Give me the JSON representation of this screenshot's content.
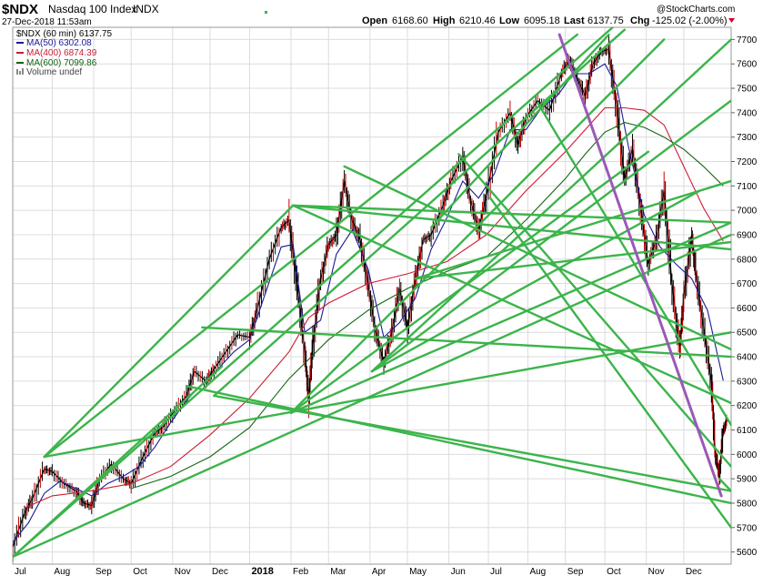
{
  "header": {
    "symbol": "$NDX",
    "name": "Nasdaq 100 Index",
    "exchange": "INDX",
    "date": "27-Dec-2018 11:53am",
    "watermark": "@StockCharts.com",
    "open_label": "Open",
    "open": "6168.60",
    "high_label": "High",
    "high": "6210.46",
    "low_label": "Low",
    "low": "6095.18",
    "last_label": "Last",
    "last": "6137.75",
    "chg_label": "Chg",
    "chg": "-125.02 (-2.00%)"
  },
  "legend": {
    "price": "$NDX (60 min) 6137.75",
    "ma50": "MA(50) 6302.08",
    "ma400": "MA(400) 6874.39",
    "ma600": "MA(600) 7099.86",
    "volume": "Volume undef"
  },
  "colors": {
    "price": "#000000",
    "down_bar": "#cc0000",
    "ma50": "#1a1a99",
    "ma400": "#cc1a33",
    "ma600": "#116611",
    "trendline": "#3cb44b",
    "purple_line": "#9b59b6",
    "down_arrow": "#cc0033"
  },
  "chart_data": {
    "type": "line",
    "title": "$NDX Nasdaq 100 Index INDX (60 min)",
    "xlabel": "",
    "ylabel": "",
    "ylim": [
      5550,
      7750
    ],
    "xlim": [
      0,
      18.2
    ],
    "y_ticks": [
      5600,
      5700,
      5800,
      5900,
      6000,
      6100,
      6200,
      6300,
      6400,
      6500,
      6600,
      6700,
      6800,
      6900,
      7000,
      7100,
      7200,
      7300,
      7400,
      7500,
      7600,
      7700
    ],
    "x_ticks": [
      {
        "t": 0.0,
        "label": "Jul"
      },
      {
        "t": 1.0,
        "label": "Aug"
      },
      {
        "t": 2.05,
        "label": "Sep"
      },
      {
        "t": 3.0,
        "label": "Oct"
      },
      {
        "t": 4.05,
        "label": "Nov"
      },
      {
        "t": 5.0,
        "label": "Dec"
      },
      {
        "t": 6.0,
        "label": "2018",
        "bold": true
      },
      {
        "t": 7.05,
        "label": "Feb"
      },
      {
        "t": 8.0,
        "label": "Mar"
      },
      {
        "t": 9.05,
        "label": "Apr"
      },
      {
        "t": 10.0,
        "label": "May"
      },
      {
        "t": 11.05,
        "label": "Jun"
      },
      {
        "t": 12.05,
        "label": "Jul"
      },
      {
        "t": 13.05,
        "label": "Aug"
      },
      {
        "t": 14.0,
        "label": "Sep"
      },
      {
        "t": 15.0,
        "label": "Oct"
      },
      {
        "t": 16.05,
        "label": "Nov"
      },
      {
        "t": 17.0,
        "label": "Dec"
      }
    ],
    "series": [
      {
        "name": "$NDX (60 min)",
        "color": "#000000",
        "points": [
          [
            0.0,
            5620
          ],
          [
            0.3,
            5760
          ],
          [
            0.5,
            5820
          ],
          [
            0.8,
            5940
          ],
          [
            1.0,
            5930
          ],
          [
            1.3,
            5880
          ],
          [
            1.6,
            5850
          ],
          [
            1.8,
            5800
          ],
          [
            2.0,
            5790
          ],
          [
            2.2,
            5900
          ],
          [
            2.5,
            5960
          ],
          [
            2.8,
            5900
          ],
          [
            3.0,
            5880
          ],
          [
            3.3,
            5990
          ],
          [
            3.6,
            6090
          ],
          [
            3.8,
            6110
          ],
          [
            4.1,
            6180
          ],
          [
            4.4,
            6240
          ],
          [
            4.6,
            6340
          ],
          [
            4.9,
            6300
          ],
          [
            5.1,
            6350
          ],
          [
            5.4,
            6420
          ],
          [
            5.7,
            6490
          ],
          [
            6.0,
            6480
          ],
          [
            6.2,
            6600
          ],
          [
            6.5,
            6800
          ],
          [
            6.8,
            6930
          ],
          [
            7.0,
            6960
          ],
          [
            7.2,
            6700
          ],
          [
            7.4,
            6420
          ],
          [
            7.5,
            6230
          ],
          [
            7.6,
            6450
          ],
          [
            7.8,
            6720
          ],
          [
            8.0,
            6860
          ],
          [
            8.2,
            6900
          ],
          [
            8.4,
            7120
          ],
          [
            8.6,
            6960
          ],
          [
            8.8,
            6880
          ],
          [
            9.0,
            6700
          ],
          [
            9.2,
            6500
          ],
          [
            9.4,
            6380
          ],
          [
            9.6,
            6500
          ],
          [
            9.8,
            6680
          ],
          [
            10.0,
            6520
          ],
          [
            10.2,
            6720
          ],
          [
            10.4,
            6880
          ],
          [
            10.6,
            6900
          ],
          [
            10.9,
            7020
          ],
          [
            11.1,
            7120
          ],
          [
            11.4,
            7220
          ],
          [
            11.6,
            7040
          ],
          [
            11.8,
            6920
          ],
          [
            12.0,
            7060
          ],
          [
            12.3,
            7320
          ],
          [
            12.6,
            7400
          ],
          [
            12.8,
            7270
          ],
          [
            13.0,
            7380
          ],
          [
            13.3,
            7450
          ],
          [
            13.6,
            7410
          ],
          [
            13.9,
            7560
          ],
          [
            14.1,
            7620
          ],
          [
            14.3,
            7540
          ],
          [
            14.5,
            7470
          ],
          [
            14.7,
            7600
          ],
          [
            14.9,
            7650
          ],
          [
            15.1,
            7660
          ],
          [
            15.3,
            7430
          ],
          [
            15.5,
            7130
          ],
          [
            15.7,
            7250
          ],
          [
            15.9,
            7020
          ],
          [
            16.1,
            6780
          ],
          [
            16.3,
            6880
          ],
          [
            16.5,
            7080
          ],
          [
            16.7,
            6700
          ],
          [
            16.9,
            6440
          ],
          [
            17.0,
            6650
          ],
          [
            17.2,
            6900
          ],
          [
            17.3,
            6750
          ],
          [
            17.5,
            6520
          ],
          [
            17.7,
            6300
          ],
          [
            17.8,
            6000
          ],
          [
            17.9,
            5920
          ],
          [
            18.0,
            6100
          ],
          [
            18.1,
            6140
          ]
        ]
      },
      {
        "name": "MA(50)",
        "color": "#1a1a99",
        "points": [
          [
            0.0,
            5640
          ],
          [
            0.4,
            5720
          ],
          [
            0.8,
            5840
          ],
          [
            1.2,
            5890
          ],
          [
            1.6,
            5860
          ],
          [
            2.0,
            5830
          ],
          [
            2.4,
            5880
          ],
          [
            2.8,
            5910
          ],
          [
            3.2,
            5950
          ],
          [
            3.6,
            6030
          ],
          [
            4.0,
            6130
          ],
          [
            4.4,
            6220
          ],
          [
            4.8,
            6290
          ],
          [
            5.2,
            6350
          ],
          [
            5.6,
            6420
          ],
          [
            6.0,
            6470
          ],
          [
            6.4,
            6660
          ],
          [
            6.8,
            6850
          ],
          [
            7.1,
            6860
          ],
          [
            7.4,
            6500
          ],
          [
            7.8,
            6550
          ],
          [
            8.2,
            6820
          ],
          [
            8.6,
            6920
          ],
          [
            9.0,
            6760
          ],
          [
            9.4,
            6480
          ],
          [
            9.8,
            6540
          ],
          [
            10.2,
            6640
          ],
          [
            10.6,
            6840
          ],
          [
            11.0,
            6970
          ],
          [
            11.4,
            7120
          ],
          [
            11.8,
            7050
          ],
          [
            12.2,
            7150
          ],
          [
            12.6,
            7330
          ],
          [
            13.0,
            7330
          ],
          [
            13.4,
            7420
          ],
          [
            13.8,
            7470
          ],
          [
            14.2,
            7560
          ],
          [
            14.6,
            7560
          ],
          [
            15.0,
            7600
          ],
          [
            15.3,
            7510
          ],
          [
            15.6,
            7260
          ],
          [
            16.0,
            6980
          ],
          [
            16.4,
            6850
          ],
          [
            16.8,
            6780
          ],
          [
            17.2,
            6720
          ],
          [
            17.6,
            6590
          ],
          [
            18.0,
            6302
          ]
        ]
      },
      {
        "name": "MA(400)",
        "color": "#cc1a33",
        "points": [
          [
            0.3,
            5780
          ],
          [
            1.0,
            5830
          ],
          [
            2.0,
            5850
          ],
          [
            3.0,
            5880
          ],
          [
            4.0,
            5950
          ],
          [
            5.0,
            6080
          ],
          [
            6.0,
            6230
          ],
          [
            7.0,
            6420
          ],
          [
            7.5,
            6560
          ],
          [
            8.0,
            6620
          ],
          [
            9.0,
            6700
          ],
          [
            10.0,
            6740
          ],
          [
            11.0,
            6790
          ],
          [
            12.0,
            6900
          ],
          [
            13.0,
            7080
          ],
          [
            14.0,
            7240
          ],
          [
            14.5,
            7330
          ],
          [
            15.0,
            7420
          ],
          [
            15.5,
            7420
          ],
          [
            16.0,
            7410
          ],
          [
            16.5,
            7350
          ],
          [
            17.0,
            7180
          ],
          [
            17.5,
            7010
          ],
          [
            18.0,
            6874
          ]
        ]
      },
      {
        "name": "MA(600)",
        "color": "#116611",
        "points": [
          [
            3.0,
            5860
          ],
          [
            4.0,
            5910
          ],
          [
            5.0,
            5990
          ],
          [
            6.0,
            6110
          ],
          [
            7.0,
            6310
          ],
          [
            8.0,
            6470
          ],
          [
            9.0,
            6590
          ],
          [
            10.0,
            6680
          ],
          [
            11.0,
            6750
          ],
          [
            12.0,
            6810
          ],
          [
            13.0,
            6960
          ],
          [
            14.0,
            7130
          ],
          [
            14.5,
            7230
          ],
          [
            15.0,
            7320
          ],
          [
            15.5,
            7360
          ],
          [
            16.0,
            7340
          ],
          [
            16.5,
            7300
          ],
          [
            17.0,
            7250
          ],
          [
            17.5,
            7180
          ],
          [
            18.0,
            7100
          ]
        ]
      }
    ],
    "trendlines": [
      [
        [
          0.0,
          5580
        ],
        [
          15.2,
          7750
        ]
      ],
      [
        [
          0.0,
          5580
        ],
        [
          5.3,
          6360
        ]
      ],
      [
        [
          0.0,
          5580
        ],
        [
          18.2,
          6900
        ]
      ],
      [
        [
          0.8,
          5990
        ],
        [
          14.3,
          7720
        ]
      ],
      [
        [
          0.8,
          5990
        ],
        [
          7.1,
          7020
        ]
      ],
      [
        [
          0.8,
          5990
        ],
        [
          18.2,
          6500
        ]
      ],
      [
        [
          4.4,
          6280
        ],
        [
          18.2,
          5800
        ]
      ],
      [
        [
          4.8,
          6520
        ],
        [
          18.2,
          6400
        ]
      ],
      [
        [
          5.1,
          6240
        ],
        [
          15.5,
          7740
        ]
      ],
      [
        [
          5.1,
          6240
        ],
        [
          18.2,
          5850
        ]
      ],
      [
        [
          7.05,
          6170
        ],
        [
          16.5,
          7700
        ]
      ],
      [
        [
          7.05,
          6170
        ],
        [
          16.1,
          7240
        ]
      ],
      [
        [
          7.05,
          6170
        ],
        [
          18.2,
          6950
        ]
      ],
      [
        [
          7.1,
          7020
        ],
        [
          18.2,
          6950
        ]
      ],
      [
        [
          7.1,
          7020
        ],
        [
          18.2,
          6210
        ]
      ],
      [
        [
          7.1,
          7020
        ],
        [
          18.2,
          6840
        ]
      ],
      [
        [
          8.4,
          7180
        ],
        [
          18.2,
          6430
        ]
      ],
      [
        [
          9.1,
          6340
        ],
        [
          18.2,
          7700
        ]
      ],
      [
        [
          9.1,
          6340
        ],
        [
          18.2,
          7450
        ]
      ],
      [
        [
          9.1,
          6340
        ],
        [
          17.4,
          7080
        ]
      ],
      [
        [
          10.2,
          6720
        ],
        [
          18.2,
          7120
        ]
      ],
      [
        [
          10.2,
          6720
        ],
        [
          18.2,
          6870
        ]
      ],
      [
        [
          10.6,
          6930
        ],
        [
          15.1,
          7720
        ]
      ],
      [
        [
          11.3,
          7230
        ],
        [
          18.2,
          5950
        ]
      ],
      [
        [
          12.1,
          7050
        ],
        [
          18.2,
          5700
        ]
      ],
      [
        [
          13.3,
          7440
        ],
        [
          18.2,
          6120
        ]
      ],
      [
        [
          17.9,
          5900
        ],
        [
          18.2,
          5850
        ]
      ]
    ],
    "purple_line": [
      [
        13.85,
        7720
      ],
      [
        17.95,
        5830
      ]
    ]
  }
}
